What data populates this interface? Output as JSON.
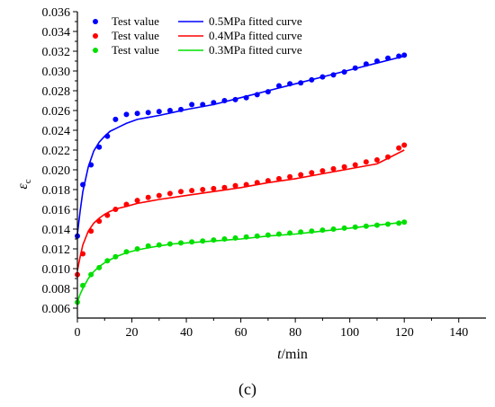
{
  "chart_data": {
    "type": "scatter",
    "panel_label": "(c)",
    "xlabel": {
      "italic": "t",
      "rest": "/min"
    },
    "ylabel": {
      "symbol": "ε",
      "subscript": "c"
    },
    "xlim": [
      0,
      150
    ],
    "ylim": [
      0.005,
      0.036
    ],
    "x_ticks": [
      0,
      20,
      40,
      60,
      80,
      100,
      120,
      140
    ],
    "y_ticks": [
      0.006,
      0.008,
      0.01,
      0.012,
      0.014,
      0.016,
      0.018,
      0.02,
      0.022,
      0.024,
      0.026,
      0.028,
      0.03,
      0.032,
      0.034,
      0.036
    ],
    "x_tick_labels": [
      "0",
      "20",
      "40",
      "60",
      "80",
      "100",
      "120",
      "140"
    ],
    "y_tick_labels": [
      "0.006",
      "0.008",
      "0.010",
      "0.012",
      "0.014",
      "0.016",
      "0.018",
      "0.020",
      "0.022",
      "0.024",
      "0.026",
      "0.028",
      "0.030",
      "0.032",
      "0.034",
      "0.036"
    ],
    "grid": false,
    "legend_position": "top-left",
    "series": [
      {
        "name": "Test value",
        "fit_name": "0.5MPa fitted curve",
        "color": "#0000ff",
        "x": [
          0,
          2,
          5,
          8,
          11,
          14,
          18,
          22,
          26,
          30,
          34,
          38,
          42,
          46,
          50,
          54,
          58,
          62,
          66,
          70,
          74,
          78,
          82,
          86,
          90,
          94,
          98,
          102,
          106,
          110,
          114,
          118,
          120
        ],
        "y": [
          0.0133,
          0.0185,
          0.0205,
          0.0223,
          0.0234,
          0.0251,
          0.0256,
          0.0257,
          0.0258,
          0.0259,
          0.026,
          0.0261,
          0.0266,
          0.0266,
          0.0268,
          0.027,
          0.0271,
          0.0273,
          0.0276,
          0.0279,
          0.0285,
          0.0287,
          0.0288,
          0.0291,
          0.0294,
          0.0296,
          0.0299,
          0.0303,
          0.0307,
          0.031,
          0.0313,
          0.0315,
          0.0316
        ],
        "fit_x": [
          0,
          1,
          2,
          4,
          6,
          8,
          10,
          12,
          15,
          18,
          22,
          26,
          30,
          35,
          40,
          50,
          60,
          70,
          80,
          90,
          100,
          110,
          120
        ],
        "fit_y": [
          0.0135,
          0.0158,
          0.0178,
          0.0203,
          0.0219,
          0.0228,
          0.0234,
          0.0239,
          0.0243,
          0.0247,
          0.0251,
          0.0253,
          0.0255,
          0.0258,
          0.0261,
          0.0266,
          0.0273,
          0.028,
          0.0287,
          0.0294,
          0.0301,
          0.0308,
          0.0315
        ]
      },
      {
        "name": "Test value",
        "fit_name": "0.4MPa fitted curve",
        "color": "#ff0000",
        "x": [
          0,
          2,
          5,
          8,
          11,
          14,
          18,
          22,
          26,
          30,
          34,
          38,
          42,
          46,
          50,
          54,
          58,
          62,
          66,
          70,
          74,
          78,
          82,
          86,
          90,
          94,
          98,
          102,
          106,
          110,
          114,
          118,
          120
        ],
        "y": [
          0.0094,
          0.0115,
          0.0138,
          0.0148,
          0.0154,
          0.016,
          0.0165,
          0.0169,
          0.0172,
          0.0174,
          0.0176,
          0.0178,
          0.0179,
          0.018,
          0.0181,
          0.0182,
          0.0184,
          0.0185,
          0.0187,
          0.0189,
          0.0191,
          0.0193,
          0.0195,
          0.0197,
          0.0199,
          0.0201,
          0.0203,
          0.0205,
          0.0208,
          0.021,
          0.0213,
          0.0222,
          0.0225
        ],
        "fit_x": [
          0,
          1,
          2,
          4,
          6,
          8,
          10,
          12,
          15,
          18,
          22,
          26,
          30,
          35,
          40,
          50,
          60,
          70,
          80,
          90,
          100,
          110,
          120
        ],
        "fit_y": [
          0.0098,
          0.0112,
          0.0124,
          0.0138,
          0.0146,
          0.0151,
          0.0155,
          0.0158,
          0.0161,
          0.0163,
          0.0166,
          0.0168,
          0.017,
          0.0172,
          0.0174,
          0.0178,
          0.0182,
          0.0187,
          0.0191,
          0.0196,
          0.0201,
          0.0206,
          0.022
        ]
      },
      {
        "name": "Test value",
        "fit_name": "0.3MPa fitted curve",
        "color": "#00e000",
        "x": [
          0,
          2,
          5,
          8,
          11,
          14,
          18,
          22,
          26,
          30,
          34,
          38,
          42,
          46,
          50,
          54,
          58,
          62,
          66,
          70,
          74,
          78,
          82,
          86,
          90,
          94,
          98,
          102,
          106,
          110,
          114,
          118,
          120
        ],
        "y": [
          0.0066,
          0.0083,
          0.0094,
          0.0101,
          0.0108,
          0.0112,
          0.0117,
          0.012,
          0.0123,
          0.0124,
          0.0125,
          0.0126,
          0.0127,
          0.0128,
          0.0129,
          0.013,
          0.0131,
          0.0132,
          0.0133,
          0.0134,
          0.0135,
          0.0136,
          0.0137,
          0.0138,
          0.0139,
          0.014,
          0.0141,
          0.0142,
          0.0143,
          0.0144,
          0.0145,
          0.0146,
          0.0147
        ],
        "fit_x": [
          0,
          1,
          2,
          4,
          6,
          8,
          10,
          12,
          15,
          18,
          22,
          26,
          30,
          35,
          40,
          50,
          60,
          70,
          80,
          90,
          100,
          110,
          120
        ],
        "fit_y": [
          0.0066,
          0.0074,
          0.008,
          0.009,
          0.0097,
          0.0102,
          0.0106,
          0.0109,
          0.0113,
          0.0116,
          0.0119,
          0.0121,
          0.0123,
          0.0125,
          0.0126,
          0.0128,
          0.013,
          0.0133,
          0.0135,
          0.0138,
          0.0141,
          0.0144,
          0.0147
        ]
      }
    ]
  }
}
